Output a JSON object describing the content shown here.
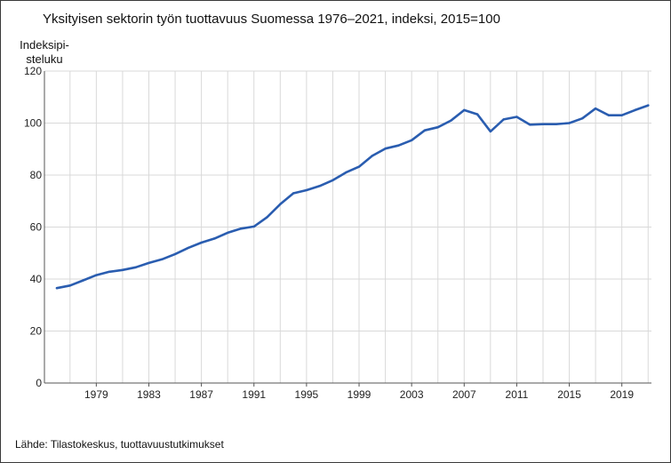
{
  "chart_data": {
    "type": "line",
    "title": "Yksityisen sektorin työn tuottavuus Suomessa 1976–2021, indeksi, 2015=100",
    "ylabel_lines": [
      "Indeksipi-",
      "steluku"
    ],
    "xlabel": "",
    "ylim": [
      0,
      120
    ],
    "y_ticks": [
      0,
      20,
      40,
      60,
      80,
      100,
      120
    ],
    "xlim": [
      1976,
      2021
    ],
    "x_ticks": [
      1979,
      1983,
      1987,
      1991,
      1995,
      1999,
      2003,
      2007,
      2011,
      2015,
      2019
    ],
    "grid": true,
    "color": "#2a5db0",
    "series": [
      {
        "x": [
          1976,
          1977,
          1978,
          1979,
          1980,
          1981,
          1982,
          1983,
          1984,
          1985,
          1986,
          1987,
          1988,
          1989,
          1990,
          1991,
          1992,
          1993,
          1994,
          1995,
          1996,
          1997,
          1998,
          1999,
          2000,
          2001,
          2002,
          2003,
          2004,
          2005,
          2006,
          2007,
          2008,
          2009,
          2010,
          2011,
          2012,
          2013,
          2014,
          2015,
          2016,
          2017,
          2018,
          2019,
          2020,
          2021
        ],
        "values": [
          36.5,
          37.5,
          39.5,
          41.5,
          42.8,
          43.5,
          44.5,
          46.2,
          47.6,
          49.6,
          52.0,
          54.0,
          55.6,
          57.8,
          59.4,
          60.2,
          63.8,
          68.8,
          73.0,
          74.2,
          75.8,
          78.0,
          81.0,
          83.2,
          87.4,
          90.2,
          91.4,
          93.4,
          97.2,
          98.4,
          101.0,
          105.0,
          103.4,
          96.8,
          101.4,
          102.4,
          99.4,
          99.6,
          99.6,
          100.0,
          101.8,
          105.6,
          103.0,
          103.0,
          105.0,
          106.8
        ]
      }
    ]
  },
  "source": "Lähde: Tilastokeskus, tuottavuustutkimukset"
}
